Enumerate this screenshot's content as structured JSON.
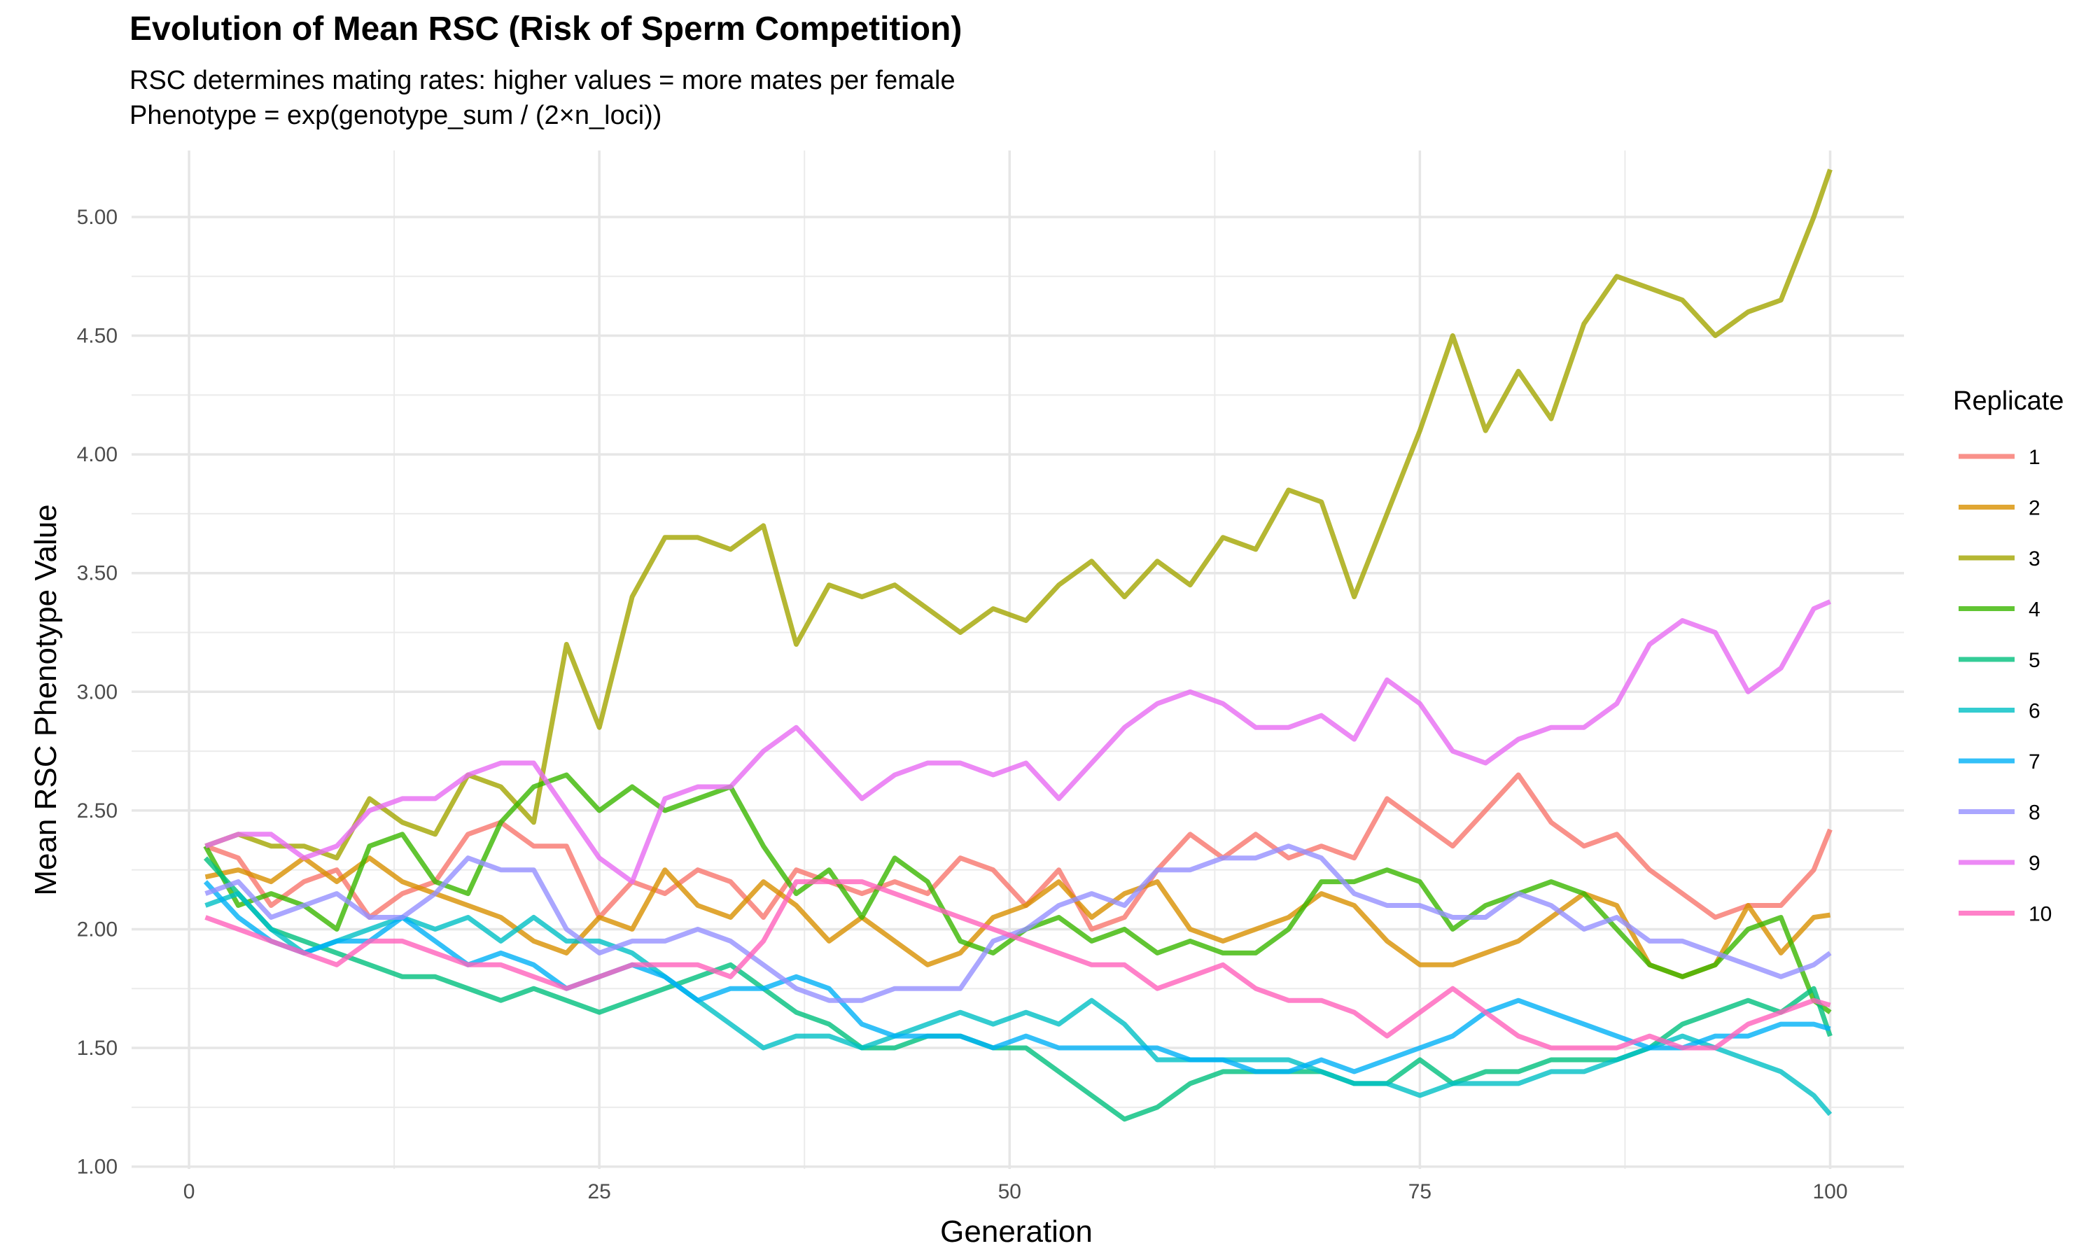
{
  "chart_data": {
    "type": "line",
    "title": "Evolution of Mean RSC (Risk of Sperm Competition)",
    "subtitle": [
      "RSC determines mating rates: higher values = more mates per female",
      "Phenotype = exp(genotype_sum / (2×n_loci))"
    ],
    "xlabel": "Generation",
    "ylabel": "Mean RSC Phenotype Value",
    "legend_title": "Replicate",
    "legend_position": "right",
    "grid": true,
    "xlim": [
      -3.5,
      104.5
    ],
    "ylim": [
      0.99,
      5.28
    ],
    "x_ticks": [
      0,
      25,
      50,
      75,
      100
    ],
    "x_tick_labels": [
      "0",
      "25",
      "50",
      "75",
      "100"
    ],
    "y_ticks": [
      1.0,
      1.5,
      2.0,
      2.5,
      3.0,
      3.5,
      4.0,
      4.5,
      5.0
    ],
    "y_tick_labels": [
      "1.00",
      "1.50",
      "2.00",
      "2.50",
      "3.00",
      "3.50",
      "4.00",
      "4.50",
      "5.00"
    ],
    "x": [
      1,
      3,
      5,
      7,
      9,
      11,
      13,
      15,
      17,
      19,
      21,
      23,
      25,
      27,
      29,
      31,
      33,
      35,
      37,
      39,
      41,
      43,
      45,
      47,
      49,
      51,
      53,
      55,
      57,
      59,
      61,
      63,
      65,
      67,
      69,
      71,
      73,
      75,
      77,
      79,
      81,
      83,
      85,
      87,
      89,
      91,
      93,
      95,
      97,
      99,
      100
    ],
    "series": [
      {
        "name": "1",
        "color": "#F8766D",
        "values": [
          2.35,
          2.3,
          2.1,
          2.2,
          2.25,
          2.05,
          2.15,
          2.2,
          2.4,
          2.45,
          2.35,
          2.35,
          2.05,
          2.2,
          2.15,
          2.25,
          2.2,
          2.05,
          2.25,
          2.2,
          2.15,
          2.2,
          2.15,
          2.3,
          2.25,
          2.1,
          2.25,
          2.0,
          2.05,
          2.25,
          2.4,
          2.3,
          2.4,
          2.3,
          2.35,
          2.3,
          2.55,
          2.45,
          2.35,
          2.5,
          2.65,
          2.45,
          2.35,
          2.4,
          2.25,
          2.15,
          2.05,
          2.1,
          2.1,
          2.25,
          2.42
        ]
      },
      {
        "name": "2",
        "color": "#D89000",
        "values": [
          2.22,
          2.25,
          2.2,
          2.3,
          2.2,
          2.3,
          2.2,
          2.15,
          2.1,
          2.05,
          1.95,
          1.9,
          2.05,
          2.0,
          2.25,
          2.1,
          2.05,
          2.2,
          2.1,
          1.95,
          2.05,
          1.95,
          1.85,
          1.9,
          2.05,
          2.1,
          2.2,
          2.05,
          2.15,
          2.2,
          2.0,
          1.95,
          2.0,
          2.05,
          2.15,
          2.1,
          1.95,
          1.85,
          1.85,
          1.9,
          1.95,
          2.05,
          2.15,
          2.1,
          1.85,
          1.8,
          1.85,
          2.1,
          1.9,
          2.05,
          2.06
        ]
      },
      {
        "name": "3",
        "color": "#A3A500",
        "values": [
          2.35,
          2.4,
          2.35,
          2.35,
          2.3,
          2.55,
          2.45,
          2.4,
          2.65,
          2.6,
          2.45,
          3.2,
          2.85,
          3.4,
          3.65,
          3.65,
          3.6,
          3.7,
          3.2,
          3.45,
          3.4,
          3.45,
          3.35,
          3.25,
          3.35,
          3.3,
          3.45,
          3.55,
          3.4,
          3.55,
          3.45,
          3.65,
          3.6,
          3.85,
          3.8,
          3.4,
          3.75,
          4.1,
          4.5,
          4.1,
          4.35,
          4.15,
          4.55,
          4.75,
          4.7,
          4.65,
          4.5,
          4.6,
          4.65,
          5.0,
          5.2
        ]
      },
      {
        "name": "4",
        "color": "#39B600",
        "values": [
          2.35,
          2.1,
          2.15,
          2.1,
          2.0,
          2.35,
          2.4,
          2.2,
          2.15,
          2.45,
          2.6,
          2.65,
          2.5,
          2.6,
          2.5,
          2.55,
          2.6,
          2.35,
          2.15,
          2.25,
          2.05,
          2.3,
          2.2,
          1.95,
          1.9,
          2.0,
          2.05,
          1.95,
          2.0,
          1.9,
          1.95,
          1.9,
          1.9,
          2.0,
          2.2,
          2.2,
          2.25,
          2.2,
          2.0,
          2.1,
          2.15,
          2.2,
          2.15,
          2.0,
          1.85,
          1.8,
          1.85,
          2.0,
          2.05,
          1.7,
          1.65
        ]
      },
      {
        "name": "5",
        "color": "#00BF7D",
        "values": [
          2.3,
          2.15,
          2.0,
          1.95,
          1.9,
          1.85,
          1.8,
          1.8,
          1.75,
          1.7,
          1.75,
          1.7,
          1.65,
          1.7,
          1.75,
          1.8,
          1.85,
          1.75,
          1.65,
          1.6,
          1.5,
          1.5,
          1.55,
          1.55,
          1.5,
          1.5,
          1.4,
          1.3,
          1.2,
          1.25,
          1.35,
          1.4,
          1.4,
          1.4,
          1.4,
          1.35,
          1.35,
          1.45,
          1.35,
          1.4,
          1.4,
          1.45,
          1.45,
          1.45,
          1.5,
          1.6,
          1.65,
          1.7,
          1.65,
          1.75,
          1.55
        ]
      },
      {
        "name": "6",
        "color": "#00BFC4",
        "values": [
          2.1,
          2.15,
          2.0,
          1.9,
          1.95,
          2.0,
          2.05,
          2.0,
          2.05,
          1.95,
          2.05,
          1.95,
          1.95,
          1.9,
          1.8,
          1.7,
          1.6,
          1.5,
          1.55,
          1.55,
          1.5,
          1.55,
          1.6,
          1.65,
          1.6,
          1.65,
          1.6,
          1.7,
          1.6,
          1.45,
          1.45,
          1.45,
          1.45,
          1.45,
          1.4,
          1.35,
          1.35,
          1.3,
          1.35,
          1.35,
          1.35,
          1.4,
          1.4,
          1.45,
          1.5,
          1.55,
          1.5,
          1.45,
          1.4,
          1.3,
          1.22
        ]
      },
      {
        "name": "7",
        "color": "#00B0F6",
        "values": [
          2.2,
          2.05,
          1.95,
          1.9,
          1.95,
          1.95,
          2.05,
          1.95,
          1.85,
          1.9,
          1.85,
          1.75,
          1.8,
          1.85,
          1.8,
          1.7,
          1.75,
          1.75,
          1.8,
          1.75,
          1.6,
          1.55,
          1.55,
          1.55,
          1.5,
          1.55,
          1.5,
          1.5,
          1.5,
          1.5,
          1.45,
          1.45,
          1.4,
          1.4,
          1.45,
          1.4,
          1.45,
          1.5,
          1.55,
          1.65,
          1.7,
          1.65,
          1.6,
          1.55,
          1.5,
          1.5,
          1.55,
          1.55,
          1.6,
          1.6,
          1.58
        ]
      },
      {
        "name": "8",
        "color": "#9590FF",
        "values": [
          2.15,
          2.2,
          2.05,
          2.1,
          2.15,
          2.05,
          2.05,
          2.15,
          2.3,
          2.25,
          2.25,
          2.0,
          1.9,
          1.95,
          1.95,
          2.0,
          1.95,
          1.85,
          1.75,
          1.7,
          1.7,
          1.75,
          1.75,
          1.75,
          1.95,
          2.0,
          2.1,
          2.15,
          2.1,
          2.25,
          2.25,
          2.3,
          2.3,
          2.35,
          2.3,
          2.15,
          2.1,
          2.1,
          2.05,
          2.05,
          2.15,
          2.1,
          2.0,
          2.05,
          1.95,
          1.95,
          1.9,
          1.85,
          1.8,
          1.85,
          1.9
        ]
      },
      {
        "name": "9",
        "color": "#E76BF3",
        "values": [
          2.35,
          2.4,
          2.4,
          2.3,
          2.35,
          2.5,
          2.55,
          2.55,
          2.65,
          2.7,
          2.7,
          2.5,
          2.3,
          2.2,
          2.55,
          2.6,
          2.6,
          2.75,
          2.85,
          2.7,
          2.55,
          2.65,
          2.7,
          2.7,
          2.65,
          2.7,
          2.55,
          2.7,
          2.85,
          2.95,
          3.0,
          2.95,
          2.85,
          2.85,
          2.9,
          2.8,
          3.05,
          2.95,
          2.75,
          2.7,
          2.8,
          2.85,
          2.85,
          2.95,
          3.2,
          3.3,
          3.25,
          3.0,
          3.1,
          3.35,
          3.38
        ]
      },
      {
        "name": "10",
        "color": "#FF62BC",
        "values": [
          2.05,
          2.0,
          1.95,
          1.9,
          1.85,
          1.95,
          1.95,
          1.9,
          1.85,
          1.85,
          1.8,
          1.75,
          1.8,
          1.85,
          1.85,
          1.85,
          1.8,
          1.95,
          2.2,
          2.2,
          2.2,
          2.15,
          2.1,
          2.05,
          2.0,
          1.95,
          1.9,
          1.85,
          1.85,
          1.75,
          1.8,
          1.85,
          1.75,
          1.7,
          1.7,
          1.65,
          1.55,
          1.65,
          1.75,
          1.65,
          1.55,
          1.5,
          1.5,
          1.5,
          1.55,
          1.5,
          1.5,
          1.6,
          1.65,
          1.7,
          1.68
        ]
      }
    ]
  }
}
